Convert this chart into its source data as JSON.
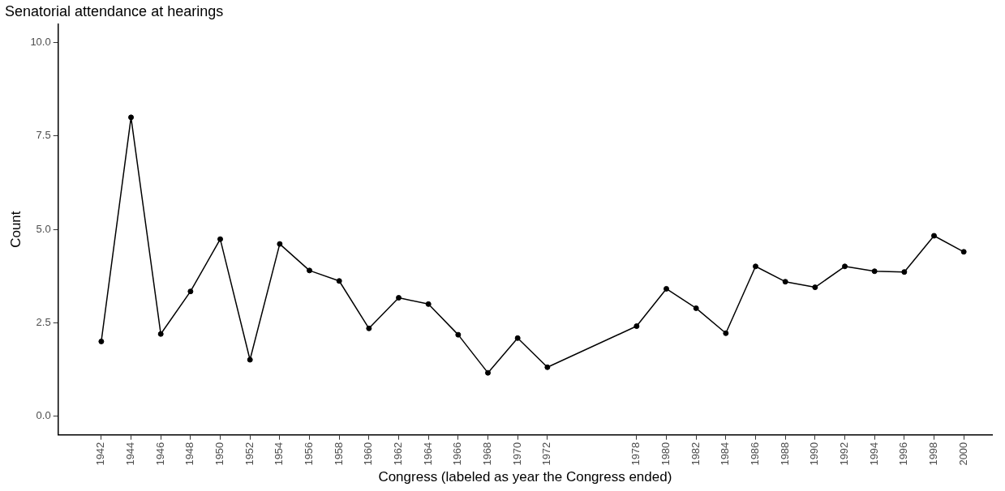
{
  "chart_data": {
    "type": "line",
    "title": "Senatorial attendance at hearings",
    "xlabel": "Congress (labeled as year the Congress ended)",
    "ylabel": "Count",
    "x": [
      1942,
      1944,
      1946,
      1948,
      1950,
      1952,
      1954,
      1956,
      1958,
      1960,
      1962,
      1964,
      1966,
      1968,
      1970,
      1972,
      1978,
      1980,
      1982,
      1984,
      1986,
      1988,
      1990,
      1992,
      1994,
      1996,
      1998,
      2000
    ],
    "series": [
      {
        "color": "#000000",
        "values": [
          2.0,
          8.0,
          2.2,
          3.34,
          4.74,
          1.51,
          4.61,
          3.9,
          3.62,
          2.35,
          3.17,
          3.0,
          2.18,
          1.16,
          2.09,
          1.31,
          2.41,
          3.41,
          2.89,
          2.22,
          4.01,
          3.6,
          3.45,
          4.01,
          3.88,
          3.86,
          4.83,
          4.4
        ]
      }
    ],
    "xlim": [
      1939.1,
      2001.9
    ],
    "xticks": [
      1942,
      1944,
      1946,
      1948,
      1950,
      1952,
      1954,
      1956,
      1958,
      1960,
      1962,
      1964,
      1966,
      1968,
      1970,
      1972,
      1978,
      1980,
      1982,
      1984,
      1986,
      1988,
      1990,
      1992,
      1994,
      1996,
      1998,
      2000
    ],
    "ylim": [
      -0.5,
      10.5
    ],
    "yticks": [
      {
        "value": 0,
        "label": "0.0"
      },
      {
        "value": 2.5,
        "label": "2.5"
      },
      {
        "value": 5,
        "label": "5.0"
      },
      {
        "value": 7.5,
        "label": "7.5"
      },
      {
        "value": 10,
        "label": "10.0"
      }
    ],
    "grid": false,
    "legend": false,
    "marker": "circle",
    "line_style": "solid"
  }
}
